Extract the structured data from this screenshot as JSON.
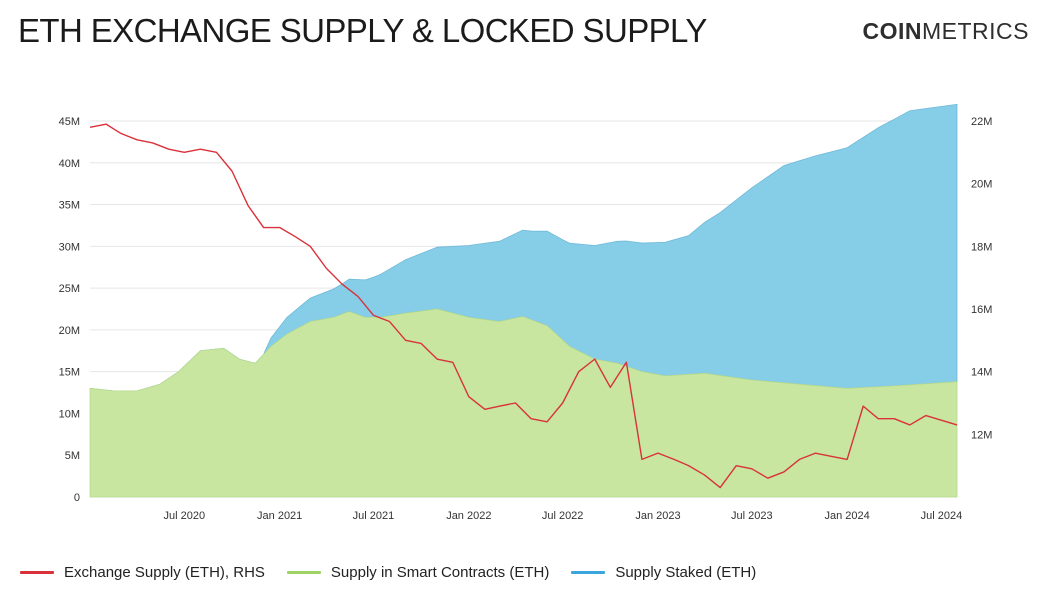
{
  "header": {
    "title": "ETH EXCHANGE SUPPLY & LOCKED SUPPLY",
    "logo_bold": "COIN",
    "logo_light": "METRICS"
  },
  "colors": {
    "exchange": "#d9323a",
    "contracts": "#c8e6a0",
    "staked": "#86cde8",
    "contracts_legend": "#9fd264",
    "staked_legend": "#3ba6dd",
    "axis_text": "#333333",
    "grid": "#e6e6e6"
  },
  "chart_data": {
    "type": "area",
    "x_range": [
      "2020-01-01",
      "2024-07-31"
    ],
    "x_ticks": [
      "Jul 2020",
      "Jan 2021",
      "Jul 2021",
      "Jan 2022",
      "Jul 2022",
      "Jan 2023",
      "Jul 2023",
      "Jan 2024",
      "Jul 2024"
    ],
    "y_left": {
      "min": 0,
      "max": 45000000,
      "ticks": [
        "0",
        "5M",
        "10M",
        "15M",
        "20M",
        "25M",
        "30M",
        "35M",
        "40M",
        "45M"
      ]
    },
    "y_right": {
      "min": 10000000,
      "max": 22000000,
      "ticks": [
        "12M",
        "14M",
        "16M",
        "18M",
        "20M",
        "22M"
      ]
    },
    "series": [
      {
        "name": "Supply in Smart Contracts (ETH)",
        "kind": "area-bottom",
        "axis": "left",
        "points": [
          [
            "2020-01-01",
            13.0
          ],
          [
            "2020-02-15",
            12.7
          ],
          [
            "2020-04-01",
            12.7
          ],
          [
            "2020-05-15",
            13.5
          ],
          [
            "2020-06-20",
            15.0
          ],
          [
            "2020-08-01",
            17.5
          ],
          [
            "2020-09-15",
            17.8
          ],
          [
            "2020-10-15",
            16.5
          ],
          [
            "2020-11-15",
            16.0
          ],
          [
            "2020-12-15",
            18.0
          ],
          [
            "2021-01-15",
            19.5
          ],
          [
            "2021-03-01",
            21.0
          ],
          [
            "2021-04-15",
            21.5
          ],
          [
            "2021-05-15",
            22.2
          ],
          [
            "2021-06-15",
            21.5
          ],
          [
            "2021-07-15",
            21.5
          ],
          [
            "2021-09-01",
            22.0
          ],
          [
            "2021-11-01",
            22.5
          ],
          [
            "2022-01-01",
            21.5
          ],
          [
            "2022-03-01",
            21.0
          ],
          [
            "2022-04-15",
            21.6
          ],
          [
            "2022-06-01",
            20.5
          ],
          [
            "2022-07-15",
            18.0
          ],
          [
            "2022-09-01",
            16.5
          ],
          [
            "2022-10-15",
            16.0
          ],
          [
            "2022-12-01",
            15.0
          ],
          [
            "2023-01-15",
            14.5
          ],
          [
            "2023-04-01",
            14.8
          ],
          [
            "2023-07-01",
            14.0
          ],
          [
            "2023-10-01",
            13.5
          ],
          [
            "2024-01-01",
            13.0
          ],
          [
            "2024-04-01",
            13.3
          ],
          [
            "2024-07-31",
            13.8
          ]
        ]
      },
      {
        "name": "Supply Staked (ETH)",
        "kind": "area-stacked",
        "axis": "left",
        "points": [
          [
            "2020-01-01",
            0
          ],
          [
            "2020-12-01",
            0
          ],
          [
            "2020-12-02",
            0.1
          ],
          [
            "2020-12-15",
            1.0
          ],
          [
            "2021-01-15",
            2.0
          ],
          [
            "2021-03-01",
            2.8
          ],
          [
            "2021-05-01",
            3.6
          ],
          [
            "2021-07-01",
            4.8
          ],
          [
            "2021-09-01",
            6.4
          ],
          [
            "2021-11-01",
            7.4
          ],
          [
            "2022-01-01",
            8.6
          ],
          [
            "2022-03-01",
            9.6
          ],
          [
            "2022-05-01",
            10.6
          ],
          [
            "2022-07-01",
            12.0
          ],
          [
            "2022-09-01",
            13.6
          ],
          [
            "2022-11-01",
            15.0
          ],
          [
            "2023-01-01",
            15.8
          ],
          [
            "2023-03-01",
            16.6
          ],
          [
            "2023-05-01",
            19.5
          ],
          [
            "2023-07-01",
            23.0
          ],
          [
            "2023-09-01",
            26.0
          ],
          [
            "2023-11-01",
            27.5
          ],
          [
            "2024-01-01",
            28.8
          ],
          [
            "2024-03-01",
            31.0
          ],
          [
            "2024-05-01",
            32.8
          ],
          [
            "2024-07-31",
            33.2
          ]
        ]
      },
      {
        "name": "Exchange Supply (ETH), RHS",
        "kind": "line",
        "axis": "right",
        "points": [
          [
            "2020-01-01",
            21.8
          ],
          [
            "2020-02-01",
            21.9
          ],
          [
            "2020-03-01",
            21.6
          ],
          [
            "2020-04-01",
            21.4
          ],
          [
            "2020-05-01",
            21.3
          ],
          [
            "2020-06-01",
            21.1
          ],
          [
            "2020-07-01",
            21.0
          ],
          [
            "2020-08-01",
            21.1
          ],
          [
            "2020-09-01",
            21.0
          ],
          [
            "2020-10-01",
            20.4
          ],
          [
            "2020-11-01",
            19.3
          ],
          [
            "2020-12-01",
            18.6
          ],
          [
            "2021-01-01",
            18.6
          ],
          [
            "2021-02-01",
            18.3
          ],
          [
            "2021-03-01",
            18.0
          ],
          [
            "2021-04-01",
            17.3
          ],
          [
            "2021-05-01",
            16.8
          ],
          [
            "2021-06-01",
            16.4
          ],
          [
            "2021-07-01",
            15.8
          ],
          [
            "2021-08-01",
            15.6
          ],
          [
            "2021-09-01",
            15.0
          ],
          [
            "2021-10-01",
            14.9
          ],
          [
            "2021-11-01",
            14.4
          ],
          [
            "2021-12-01",
            14.3
          ],
          [
            "2022-01-01",
            13.2
          ],
          [
            "2022-02-01",
            12.8
          ],
          [
            "2022-03-01",
            12.9
          ],
          [
            "2022-04-01",
            13.0
          ],
          [
            "2022-05-01",
            12.5
          ],
          [
            "2022-06-01",
            12.4
          ],
          [
            "2022-07-01",
            13.0
          ],
          [
            "2022-08-01",
            14.0
          ],
          [
            "2022-09-01",
            14.4
          ],
          [
            "2022-10-01",
            13.5
          ],
          [
            "2022-11-01",
            14.3
          ],
          [
            "2022-12-01",
            11.2
          ],
          [
            "2023-01-01",
            11.4
          ],
          [
            "2023-02-01",
            11.2
          ],
          [
            "2023-03-01",
            11.0
          ],
          [
            "2023-04-01",
            10.7
          ],
          [
            "2023-05-01",
            10.3
          ],
          [
            "2023-06-01",
            11.0
          ],
          [
            "2023-07-01",
            10.9
          ],
          [
            "2023-08-01",
            10.6
          ],
          [
            "2023-09-01",
            10.8
          ],
          [
            "2023-10-01",
            11.2
          ],
          [
            "2023-11-01",
            11.4
          ],
          [
            "2023-12-01",
            11.3
          ],
          [
            "2024-01-01",
            11.2
          ],
          [
            "2024-02-01",
            12.9
          ],
          [
            "2024-03-01",
            12.5
          ],
          [
            "2024-04-01",
            12.5
          ],
          [
            "2024-05-01",
            12.3
          ],
          [
            "2024-06-01",
            12.6
          ],
          [
            "2024-07-31",
            12.3
          ]
        ]
      }
    ],
    "legend": [
      "Exchange Supply (ETH), RHS",
      "Supply in Smart Contracts (ETH)",
      "Supply Staked (ETH)"
    ],
    "legend_position": "bottom",
    "grid": true
  }
}
